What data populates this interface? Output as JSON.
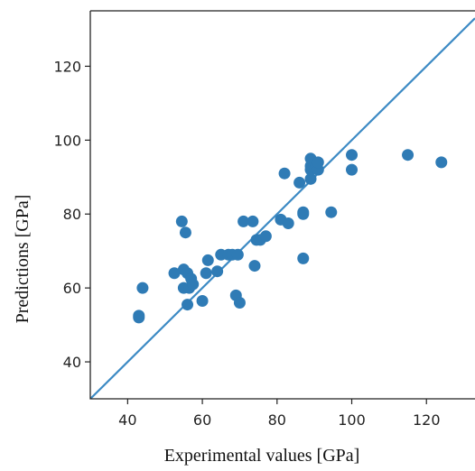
{
  "chart_data": {
    "type": "scatter",
    "title": "",
    "xlabel": "Experimental values [GPa]",
    "ylabel": "Predictions [GPa]",
    "xlim": [
      30,
      133
    ],
    "ylim": [
      30,
      135
    ],
    "xticks": [
      40,
      60,
      80,
      100,
      120
    ],
    "yticks": [
      40,
      60,
      80,
      100,
      120
    ],
    "grid": false,
    "marker_color": "#2f7bb5",
    "line_color": "#3c8ac4",
    "reference_line": {
      "type": "identity",
      "from": [
        30,
        30
      ],
      "to": [
        133,
        133
      ]
    },
    "series": [
      {
        "x": [
          43,
          43,
          44,
          52.5,
          54.5,
          55,
          55,
          55.5,
          56,
          56,
          56.5,
          57,
          57.5,
          60,
          61,
          61.5,
          64,
          65,
          67,
          68,
          69,
          69.5,
          70,
          71,
          73.5,
          74,
          74.5,
          75.5,
          77,
          81,
          82,
          83,
          86,
          87,
          87,
          87,
          89,
          89,
          89,
          89,
          90,
          90.5,
          91,
          91,
          94.5,
          100,
          100,
          115,
          124
        ],
        "y": [
          52.5,
          52,
          60,
          64,
          78,
          60,
          65,
          75,
          64,
          55.5,
          60,
          62.5,
          61,
          56.5,
          64,
          67.5,
          64.5,
          69,
          69,
          69,
          58,
          69,
          56,
          78,
          78,
          66,
          73,
          73,
          74,
          78.5,
          91,
          77.5,
          88.5,
          68,
          80,
          80.5,
          89.5,
          92,
          93,
          95,
          93,
          93,
          92,
          94,
          80.5,
          96,
          92,
          96,
          94
        ]
      }
    ]
  }
}
